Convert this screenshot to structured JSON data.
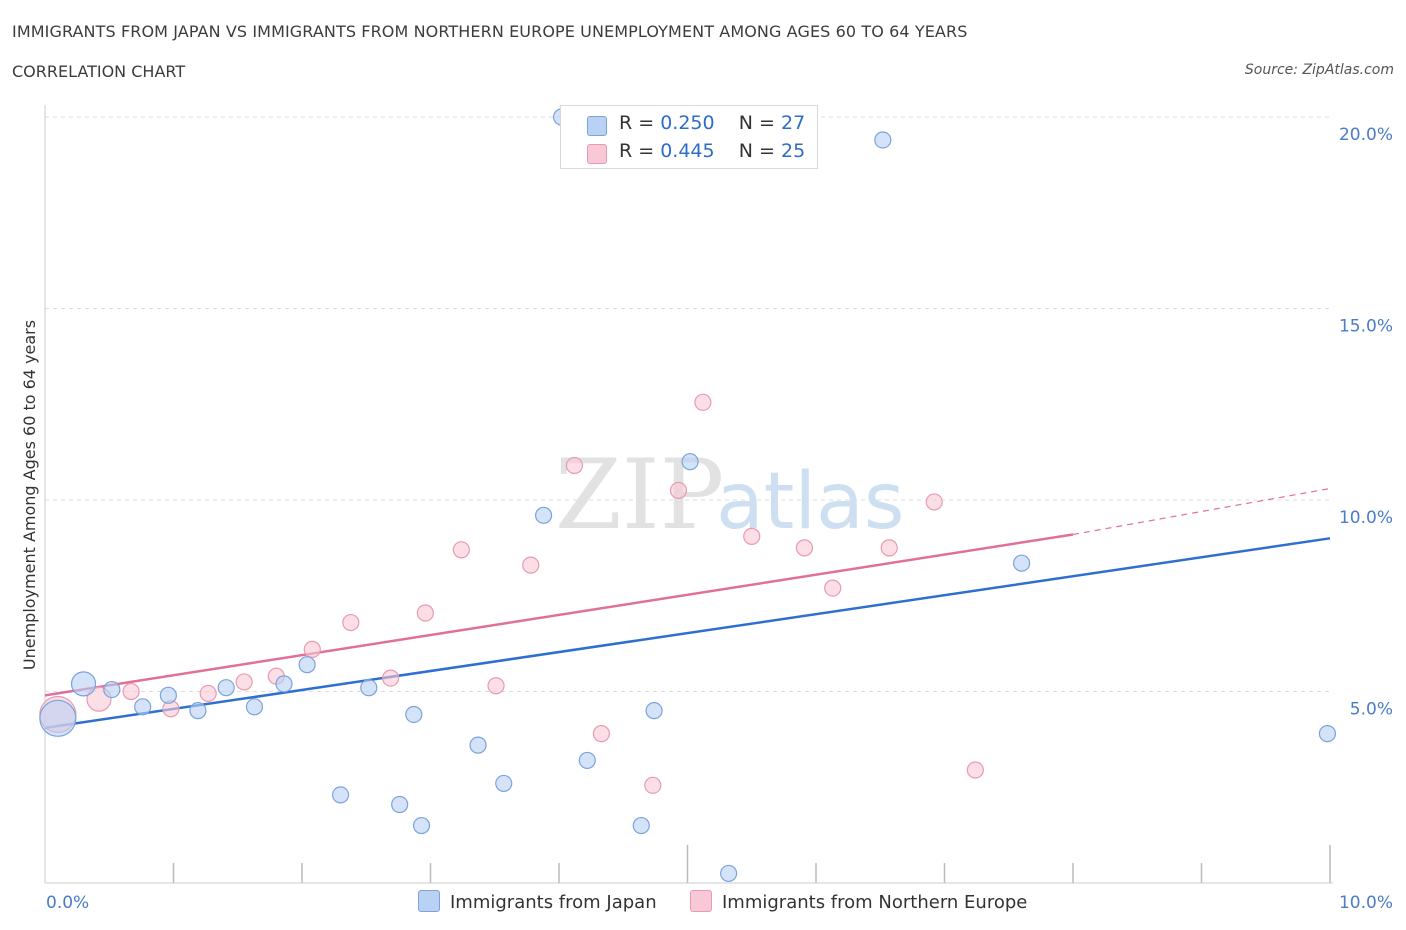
{
  "title": "IMMIGRANTS FROM JAPAN VS IMMIGRANTS FROM NORTHERN EUROPE UNEMPLOYMENT AMONG AGES 60 TO 64 YEARS",
  "subtitle": "CORRELATION CHART",
  "source": "Source: ZipAtlas.com",
  "watermark": {
    "zip": "ZIP",
    "atlas": "atlas"
  },
  "legend": {
    "japan": {
      "r_label": "R =",
      "r_value": "0.250",
      "n_label": "N =",
      "n_value": "27"
    },
    "europe": {
      "r_label": "R =",
      "r_value": "0.445",
      "n_label": "N =",
      "n_value": "25"
    }
  },
  "colors": {
    "japan_fill": "#b9d1f3",
    "japan_stroke": "#7aa3dc",
    "japan_line": "#2f6fcf",
    "europe_fill": "#f8c8d6",
    "europe_stroke": "#e89ab2",
    "europe_line": "#e0709a",
    "grid": "#dddddd",
    "tick_text": "#4a7cc7"
  },
  "chart_data": {
    "type": "scatter",
    "title": "IMMIGRANTS FROM JAPAN VS IMMIGRANTS FROM NORTHERN EUROPE UNEMPLOYMENT AMONG AGES 60 TO 64 YEARS",
    "xlabel": "",
    "ylabel": "Unemployment Among Ages 60 to 64 years",
    "xlim": [
      0,
      10
    ],
    "ylim": [
      0,
      20
    ],
    "x_tick_labels": [
      "0.0%",
      "10.0%"
    ],
    "y_ticks": [
      5,
      10,
      15,
      20
    ],
    "y_tick_labels": [
      "5.0%",
      "10.0%",
      "15.0%",
      "20.0%"
    ],
    "grid": true,
    "legend_position": "top-center",
    "series": [
      {
        "name": "Immigrants from Japan",
        "points": [
          {
            "x": 0.1,
            "y": 4.3,
            "size": "large"
          },
          {
            "x": 0.3,
            "y": 5.2,
            "size": "medium"
          },
          {
            "x": 0.52,
            "y": 5.05,
            "size": "small"
          },
          {
            "x": 0.76,
            "y": 4.6,
            "size": "small"
          },
          {
            "x": 0.96,
            "y": 4.9,
            "size": "small"
          },
          {
            "x": 1.19,
            "y": 4.5,
            "size": "small"
          },
          {
            "x": 1.41,
            "y": 5.1,
            "size": "small"
          },
          {
            "x": 1.63,
            "y": 4.6,
            "size": "small"
          },
          {
            "x": 1.86,
            "y": 5.2,
            "size": "small"
          },
          {
            "x": 2.04,
            "y": 5.7,
            "size": "small"
          },
          {
            "x": 2.3,
            "y": 2.3,
            "size": "small"
          },
          {
            "x": 2.52,
            "y": 5.1,
            "size": "small"
          },
          {
            "x": 2.76,
            "y": 2.05,
            "size": "small"
          },
          {
            "x": 2.87,
            "y": 4.4,
            "size": "small"
          },
          {
            "x": 2.93,
            "y": 1.5,
            "size": "small"
          },
          {
            "x": 3.37,
            "y": 3.6,
            "size": "small"
          },
          {
            "x": 3.57,
            "y": 2.6,
            "size": "small"
          },
          {
            "x": 3.88,
            "y": 9.6,
            "size": "small"
          },
          {
            "x": 4.02,
            "y": 20.0,
            "size": "small"
          },
          {
            "x": 4.22,
            "y": 3.2,
            "size": "small"
          },
          {
            "x": 4.64,
            "y": 1.5,
            "size": "small"
          },
          {
            "x": 4.74,
            "y": 4.5,
            "size": "small"
          },
          {
            "x": 5.02,
            "y": 11.0,
            "size": "small"
          },
          {
            "x": 5.32,
            "y": 0.25,
            "size": "small"
          },
          {
            "x": 6.52,
            "y": 19.4,
            "size": "small"
          },
          {
            "x": 7.6,
            "y": 8.35,
            "size": "small"
          },
          {
            "x": 9.98,
            "y": 3.9,
            "size": "small"
          }
        ],
        "trend": {
          "x0": 0,
          "y0": 4.05,
          "x1": 10,
          "y1": 9.0
        }
      },
      {
        "name": "Immigrants from Northern Europe",
        "points": [
          {
            "x": 0.1,
            "y": 4.4,
            "size": "large"
          },
          {
            "x": 0.42,
            "y": 4.8,
            "size": "medium"
          },
          {
            "x": 0.67,
            "y": 5.0,
            "size": "small"
          },
          {
            "x": 0.98,
            "y": 4.55,
            "size": "small"
          },
          {
            "x": 1.27,
            "y": 4.95,
            "size": "small"
          },
          {
            "x": 1.55,
            "y": 5.25,
            "size": "small"
          },
          {
            "x": 1.8,
            "y": 5.4,
            "size": "small"
          },
          {
            "x": 2.08,
            "y": 6.1,
            "size": "small"
          },
          {
            "x": 2.38,
            "y": 6.8,
            "size": "small"
          },
          {
            "x": 2.69,
            "y": 5.35,
            "size": "small"
          },
          {
            "x": 2.96,
            "y": 7.05,
            "size": "small"
          },
          {
            "x": 3.24,
            "y": 8.7,
            "size": "small"
          },
          {
            "x": 3.51,
            "y": 5.15,
            "size": "small"
          },
          {
            "x": 3.78,
            "y": 8.3,
            "size": "small"
          },
          {
            "x": 4.12,
            "y": 10.9,
            "size": "small"
          },
          {
            "x": 4.33,
            "y": 3.9,
            "size": "small"
          },
          {
            "x": 4.73,
            "y": 2.55,
            "size": "small"
          },
          {
            "x": 4.93,
            "y": 10.25,
            "size": "small"
          },
          {
            "x": 5.12,
            "y": 12.55,
            "size": "small"
          },
          {
            "x": 5.5,
            "y": 9.05,
            "size": "small"
          },
          {
            "x": 5.91,
            "y": 8.75,
            "size": "small"
          },
          {
            "x": 6.13,
            "y": 7.7,
            "size": "small"
          },
          {
            "x": 6.57,
            "y": 8.75,
            "size": "small"
          },
          {
            "x": 6.92,
            "y": 9.95,
            "size": "small"
          },
          {
            "x": 7.24,
            "y": 2.95,
            "size": "small"
          }
        ],
        "trend": {
          "x0": 0,
          "y0": 4.9,
          "x1": 8.0,
          "y1": 9.1,
          "dashed_to_x": 10,
          "dashed_to_y": 10.3
        }
      }
    ]
  },
  "bottom_legend": {
    "japan_label": "Immigrants from Japan",
    "europe_label": "Immigrants from Northern Europe"
  }
}
